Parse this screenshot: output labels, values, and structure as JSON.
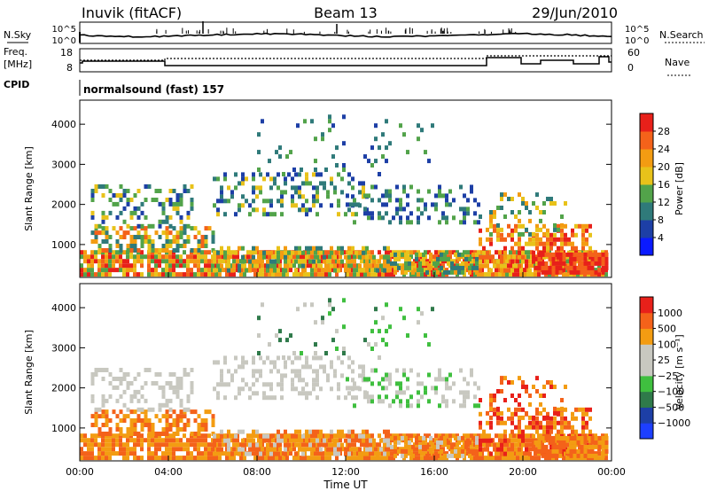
{
  "header": {
    "station": "Inuvik (fitACF)",
    "beam": "Beam 13",
    "date": "29/Jun/2010"
  },
  "panels": {
    "nsky_label": "N.Sky",
    "nsearch_label": "N.Search",
    "freq_label_1": "Freq.",
    "freq_label_2": "[MHz]",
    "nave_label": "Nave",
    "cpid_label": "CPID",
    "cpid_text": "normalsound (fast) 157",
    "nsky_ticks": [
      "10^5",
      "10^0"
    ],
    "nsearch_ticks": [
      "10^5",
      "10^0"
    ],
    "freq_ticks": [
      "18",
      "8"
    ],
    "nave_ticks": [
      "60",
      "0"
    ]
  },
  "colors": {
    "power_scale": [
      "#0a1aff",
      "#1d3fa6",
      "#2f7a7a",
      "#52a34a",
      "#e8c21a",
      "#f39c12",
      "#f4621a",
      "#e8201a"
    ],
    "velocity_scale": [
      "#e8201a",
      "#f4621a",
      "#f39c12",
      "#c8c8c0",
      "#c8c8c0",
      "#3fbf3f",
      "#2f7a4a",
      "#1d3fa6",
      "#1d3fff"
    ]
  },
  "chart_data": [
    {
      "type": "heatmap",
      "name": "power",
      "ylabel": "Slant Range [km]",
      "colorbar_label": "Power [dB]",
      "colorbar_ticks": [
        "28",
        "24",
        "20",
        "16",
        "12",
        "8",
        "4"
      ],
      "ylim": [
        180,
        4600
      ],
      "yticks": [
        1000,
        2000,
        3000,
        4000
      ],
      "ytick_labels": [
        "1000",
        "2000",
        "3000",
        "4000"
      ]
    },
    {
      "type": "heatmap",
      "name": "velocity",
      "ylabel": "Slant Range [km]",
      "colorbar_label": "Velocity [m s⁻¹]",
      "colorbar_ticks": [
        "1000",
        "500",
        "100",
        "25",
        "−25",
        "−100",
        "−500",
        "−1000"
      ],
      "ylim": [
        180,
        4600
      ],
      "yticks": [
        1000,
        2000,
        3000,
        4000
      ],
      "ytick_labels": [
        "1000",
        "2000",
        "3000",
        "4000"
      ]
    }
  ],
  "xaxis": {
    "label": "Time UT",
    "ticks": [
      "00:00",
      "04:00",
      "08:00",
      "12:00",
      "16:00",
      "20:00",
      "00:00"
    ],
    "xlim_hours": [
      0,
      24
    ]
  }
}
